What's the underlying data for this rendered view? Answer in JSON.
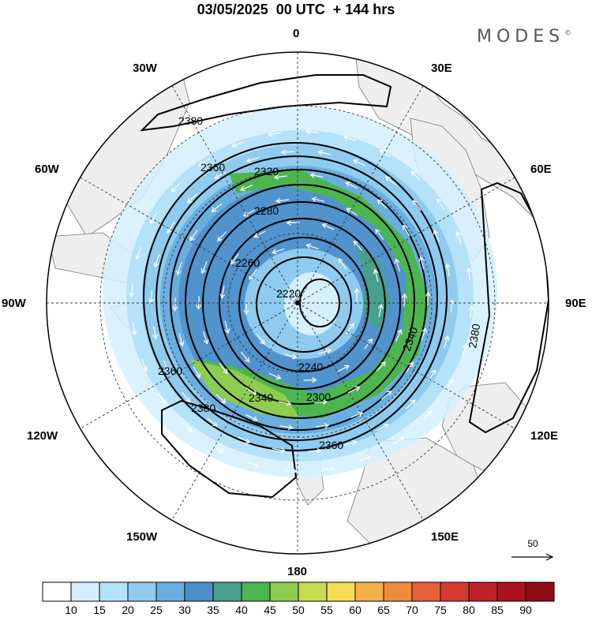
{
  "header": {
    "title": "03/05/2025  00 UTC  + 144 hrs",
    "brand": "MODES"
  },
  "longitude_labels": [
    "0",
    "30E",
    "60E",
    "90E",
    "120E",
    "150E",
    "180",
    "150W",
    "120W",
    "90W",
    "60W",
    "30W"
  ],
  "contours": {
    "interval": 20,
    "labels": [
      "2220",
      "2240",
      "2260",
      "2280",
      "2300",
      "2320",
      "2340",
      "2360",
      "2380"
    ]
  },
  "wind_reference": {
    "value": "50"
  },
  "colorbar": {
    "ticks": [
      "10",
      "15",
      "20",
      "25",
      "30",
      "35",
      "40",
      "45",
      "50",
      "55",
      "60",
      "65",
      "70",
      "75",
      "80",
      "85",
      "90"
    ],
    "colors": [
      "#ffffff",
      "#d4f0ff",
      "#b4e2f8",
      "#8ecbee",
      "#6aaee0",
      "#4b8ec9",
      "#48a08c",
      "#4db550",
      "#8ecc50",
      "#c8dc50",
      "#f4de58",
      "#f2b04a",
      "#ee8a3c",
      "#e8603a",
      "#d83a30",
      "#c02028",
      "#a8141e",
      "#8e0c14"
    ]
  }
}
